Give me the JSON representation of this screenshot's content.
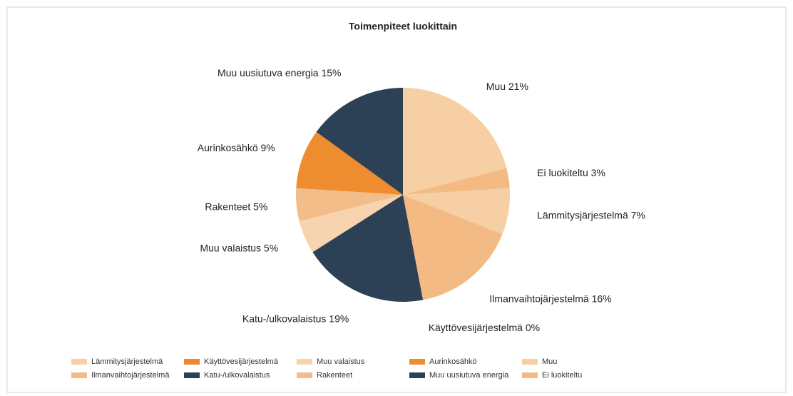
{
  "chart_data": {
    "type": "pie",
    "title": "Toimenpiteet luokittain",
    "categories": [
      "Lämmitysjärjestelmä",
      "Ilmanvaihtojärjestelmä",
      "Käyttövesijärjestelmä",
      "Katu-/ulkovalaistus",
      "Muu valaistus",
      "Rakenteet",
      "Aurinkosähkö",
      "Muu uusiutuva energia",
      "Muu",
      "Ei luokiteltu"
    ],
    "values": [
      7,
      16,
      0,
      19,
      5,
      5,
      9,
      15,
      21,
      3
    ],
    "value_labels": [
      "Lämmitysjärjestelmä 7%",
      "Ilmanvaihtojärjestelmä 16%",
      "Käyttövesijärjestelmä 0%",
      "Katu-/ulkovalaistus 19%",
      "Muu valaistus 5%",
      "Rakenteet 5%",
      "Aurinkosähkö 9%",
      "Muu uusiutuva energia 15%",
      "Muu 21%",
      "Ei luokiteltu 3%"
    ],
    "colors": [
      "#f7cfa5",
      "#f3bb83",
      "#ee8a2e",
      "#2d4156",
      "#f7d3af",
      "#f2bd88",
      "#ee8c30",
      "#2d4156",
      "#f7cfa5",
      "#f3bb83"
    ],
    "legend": "bottom"
  }
}
